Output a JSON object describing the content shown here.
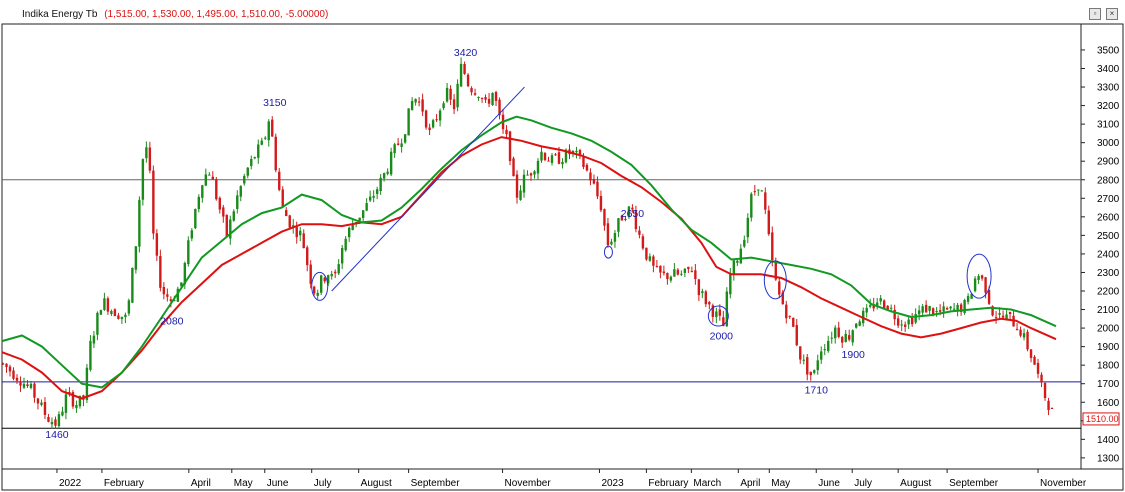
{
  "chart_data": {
    "type": "candlestick",
    "title": "Indika Energy Tb",
    "ohlc_text": "(1,515.00, 1,530.00, 1,495.00, 1,510.00, -5.00000)",
    "last_price_label": "1510.00",
    "y_ticks": [
      1300,
      1400,
      1500,
      1600,
      1700,
      1800,
      1900,
      2000,
      2100,
      2200,
      2300,
      2400,
      2500,
      2600,
      2700,
      2800,
      2900,
      3000,
      3100,
      3200,
      3300,
      3400,
      3500
    ],
    "ylim": [
      1240,
      3640
    ],
    "x_range": [
      0,
      1080
    ],
    "x_labels": [
      {
        "label": "2022",
        "x": 55
      },
      {
        "label": "February",
        "x": 100
      },
      {
        "label": "April",
        "x": 187
      },
      {
        "label": "May",
        "x": 230
      },
      {
        "label": "June",
        "x": 263
      },
      {
        "label": "July",
        "x": 310
      },
      {
        "label": "August",
        "x": 357
      },
      {
        "label": "September",
        "x": 407
      },
      {
        "label": "November",
        "x": 501
      },
      {
        "label": "2023",
        "x": 598
      },
      {
        "label": "February",
        "x": 645
      },
      {
        "label": "March",
        "x": 690
      },
      {
        "label": "April",
        "x": 737
      },
      {
        "label": "May",
        "x": 768
      },
      {
        "label": "June",
        "x": 815
      },
      {
        "label": "July",
        "x": 851
      },
      {
        "label": "August",
        "x": 897
      },
      {
        "label": "September",
        "x": 946
      },
      {
        "label": "November",
        "x": 1037
      }
    ],
    "horizontal_lines": [
      {
        "price": 2800,
        "color": "#666666"
      },
      {
        "price": 1710,
        "color": "#1a1aa8"
      },
      {
        "price": 1460,
        "color": "#000000"
      }
    ],
    "annotations": [
      {
        "text": "1460",
        "x": 55,
        "price": 1430
      },
      {
        "text": "2080",
        "x": 170,
        "price": 2040
      },
      {
        "text": "3150",
        "x": 273,
        "price": 3220
      },
      {
        "text": "3420",
        "x": 464,
        "price": 3490
      },
      {
        "text": "2650",
        "x": 631,
        "price": 2620
      },
      {
        "text": "2000",
        "x": 720,
        "price": 1960
      },
      {
        "text": "1710",
        "x": 815,
        "price": 1670
      },
      {
        "text": "1900",
        "x": 852,
        "price": 1860
      }
    ],
    "trendline": {
      "from": {
        "x": 330,
        "price": 2200
      },
      "to": {
        "x": 523,
        "price": 3300
      }
    },
    "ellipses": [
      {
        "x": 318,
        "price": 2225,
        "rx": 8,
        "ry": 14
      },
      {
        "x": 607,
        "price": 2410,
        "rx": 4,
        "ry": 6
      },
      {
        "x": 717,
        "price": 2065,
        "rx": 10,
        "ry": 10
      },
      {
        "x": 774,
        "price": 2260,
        "rx": 11,
        "ry": 19
      },
      {
        "x": 978,
        "price": 2280,
        "rx": 12,
        "ry": 22
      }
    ],
    "price_path": [
      [
        0,
        1810
      ],
      [
        15,
        1740
      ],
      [
        30,
        1660
      ],
      [
        45,
        1520
      ],
      [
        55,
        1480
      ],
      [
        65,
        1640
      ],
      [
        75,
        1590
      ],
      [
        82,
        1620
      ],
      [
        88,
        1900
      ],
      [
        100,
        2150
      ],
      [
        110,
        2100
      ],
      [
        125,
        2050
      ],
      [
        135,
        2500
      ],
      [
        140,
        2900
      ],
      [
        146,
        3000
      ],
      [
        152,
        2450
      ],
      [
        160,
        2200
      ],
      [
        170,
        2150
      ],
      [
        180,
        2250
      ],
      [
        190,
        2550
      ],
      [
        200,
        2800
      ],
      [
        208,
        2850
      ],
      [
        215,
        2700
      ],
      [
        225,
        2500
      ],
      [
        235,
        2700
      ],
      [
        245,
        2850
      ],
      [
        255,
        2950
      ],
      [
        262,
        3000
      ],
      [
        268,
        3150
      ],
      [
        272,
        2950
      ],
      [
        280,
        2650
      ],
      [
        290,
        2550
      ],
      [
        300,
        2500
      ],
      [
        308,
        2280
      ],
      [
        314,
        2180
      ],
      [
        320,
        2260
      ],
      [
        327,
        2300
      ],
      [
        332,
        2250
      ],
      [
        340,
        2430
      ],
      [
        350,
        2560
      ],
      [
        360,
        2620
      ],
      [
        370,
        2700
      ],
      [
        382,
        2820
      ],
      [
        392,
        2950
      ],
      [
        402,
        3050
      ],
      [
        412,
        3250
      ],
      [
        420,
        3200
      ],
      [
        428,
        3050
      ],
      [
        436,
        3150
      ],
      [
        444,
        3280
      ],
      [
        452,
        3180
      ],
      [
        460,
        3420
      ],
      [
        468,
        3300
      ],
      [
        476,
        3280
      ],
      [
        484,
        3200
      ],
      [
        492,
        3280
      ],
      [
        500,
        3070
      ],
      [
        507,
        3000
      ],
      [
        514,
        2700
      ],
      [
        522,
        2800
      ],
      [
        530,
        2850
      ],
      [
        540,
        2950
      ],
      [
        550,
        2900
      ],
      [
        560,
        2920
      ],
      [
        570,
        2950
      ],
      [
        580,
        2900
      ],
      [
        590,
        2800
      ],
      [
        600,
        2650
      ],
      [
        606,
        2450
      ],
      [
        612,
        2500
      ],
      [
        620,
        2600
      ],
      [
        630,
        2650
      ],
      [
        638,
        2500
      ],
      [
        646,
        2380
      ],
      [
        654,
        2300
      ],
      [
        662,
        2280
      ],
      [
        672,
        2290
      ],
      [
        682,
        2280
      ],
      [
        690,
        2330
      ],
      [
        698,
        2200
      ],
      [
        708,
        2120
      ],
      [
        716,
        2060
      ],
      [
        722,
        2010
      ],
      [
        728,
        2280
      ],
      [
        734,
        2350
      ],
      [
        742,
        2480
      ],
      [
        750,
        2700
      ],
      [
        757,
        2780
      ],
      [
        762,
        2700
      ],
      [
        770,
        2380
      ],
      [
        776,
        2200
      ],
      [
        784,
        2100
      ],
      [
        792,
        2000
      ],
      [
        800,
        1830
      ],
      [
        808,
        1760
      ],
      [
        812,
        1730
      ],
      [
        818,
        1880
      ],
      [
        826,
        1930
      ],
      [
        834,
        2000
      ],
      [
        842,
        1950
      ],
      [
        848,
        1960
      ],
      [
        856,
        2050
      ],
      [
        866,
        2080
      ],
      [
        876,
        2150
      ],
      [
        886,
        2130
      ],
      [
        896,
        2050
      ],
      [
        906,
        2030
      ],
      [
        916,
        2080
      ],
      [
        926,
        2110
      ],
      [
        936,
        2080
      ],
      [
        946,
        2090
      ],
      [
        956,
        2100
      ],
      [
        966,
        2130
      ],
      [
        976,
        2300
      ],
      [
        984,
        2230
      ],
      [
        992,
        2080
      ],
      [
        1000,
        2060
      ],
      [
        1010,
        2050
      ],
      [
        1020,
        1980
      ],
      [
        1028,
        1880
      ],
      [
        1034,
        1800
      ],
      [
        1040,
        1680
      ],
      [
        1046,
        1610
      ],
      [
        1054,
        1510
      ]
    ],
    "series": [
      {
        "name": "MA1",
        "color": "#dd1111",
        "points": [
          [
            0,
            1870
          ],
          [
            20,
            1830
          ],
          [
            40,
            1760
          ],
          [
            60,
            1660
          ],
          [
            80,
            1620
          ],
          [
            100,
            1660
          ],
          [
            120,
            1760
          ],
          [
            140,
            1880
          ],
          [
            160,
            2020
          ],
          [
            180,
            2140
          ],
          [
            200,
            2240
          ],
          [
            220,
            2340
          ],
          [
            240,
            2400
          ],
          [
            260,
            2460
          ],
          [
            280,
            2520
          ],
          [
            300,
            2560
          ],
          [
            320,
            2560
          ],
          [
            340,
            2550
          ],
          [
            360,
            2570
          ],
          [
            380,
            2560
          ],
          [
            400,
            2600
          ],
          [
            420,
            2720
          ],
          [
            440,
            2840
          ],
          [
            460,
            2930
          ],
          [
            480,
            2990
          ],
          [
            500,
            3030
          ],
          [
            520,
            3010
          ],
          [
            540,
            2980
          ],
          [
            560,
            2960
          ],
          [
            580,
            2930
          ],
          [
            600,
            2890
          ],
          [
            620,
            2820
          ],
          [
            640,
            2760
          ],
          [
            660,
            2680
          ],
          [
            680,
            2590
          ],
          [
            700,
            2460
          ],
          [
            715,
            2330
          ],
          [
            730,
            2290
          ],
          [
            760,
            2290
          ],
          [
            780,
            2270
          ],
          [
            800,
            2220
          ],
          [
            820,
            2160
          ],
          [
            840,
            2110
          ],
          [
            860,
            2060
          ],
          [
            880,
            2010
          ],
          [
            900,
            1970
          ],
          [
            920,
            1950
          ],
          [
            940,
            1970
          ],
          [
            960,
            2000
          ],
          [
            980,
            2030
          ],
          [
            1000,
            2050
          ],
          [
            1015,
            2040
          ],
          [
            1030,
            2000
          ],
          [
            1055,
            1940
          ]
        ]
      },
      {
        "name": "MA2",
        "color": "#119922",
        "points": [
          [
            0,
            1930
          ],
          [
            20,
            1960
          ],
          [
            40,
            1900
          ],
          [
            60,
            1800
          ],
          [
            80,
            1700
          ],
          [
            100,
            1680
          ],
          [
            120,
            1760
          ],
          [
            140,
            1900
          ],
          [
            160,
            2060
          ],
          [
            180,
            2220
          ],
          [
            200,
            2380
          ],
          [
            220,
            2470
          ],
          [
            240,
            2560
          ],
          [
            260,
            2620
          ],
          [
            280,
            2650
          ],
          [
            300,
            2720
          ],
          [
            320,
            2690
          ],
          [
            340,
            2610
          ],
          [
            360,
            2570
          ],
          [
            380,
            2580
          ],
          [
            400,
            2650
          ],
          [
            420,
            2750
          ],
          [
            440,
            2860
          ],
          [
            460,
            2960
          ],
          [
            480,
            3040
          ],
          [
            500,
            3110
          ],
          [
            515,
            3140
          ],
          [
            530,
            3120
          ],
          [
            550,
            3080
          ],
          [
            570,
            3050
          ],
          [
            590,
            3010
          ],
          [
            610,
            2950
          ],
          [
            630,
            2880
          ],
          [
            650,
            2770
          ],
          [
            670,
            2640
          ],
          [
            690,
            2530
          ],
          [
            710,
            2460
          ],
          [
            730,
            2370
          ],
          [
            750,
            2380
          ],
          [
            770,
            2360
          ],
          [
            790,
            2340
          ],
          [
            810,
            2320
          ],
          [
            830,
            2290
          ],
          [
            850,
            2230
          ],
          [
            870,
            2130
          ],
          [
            890,
            2090
          ],
          [
            910,
            2060
          ],
          [
            930,
            2070
          ],
          [
            950,
            2090
          ],
          [
            970,
            2100
          ],
          [
            990,
            2110
          ],
          [
            1010,
            2100
          ],
          [
            1030,
            2070
          ],
          [
            1055,
            2010
          ]
        ]
      }
    ]
  }
}
